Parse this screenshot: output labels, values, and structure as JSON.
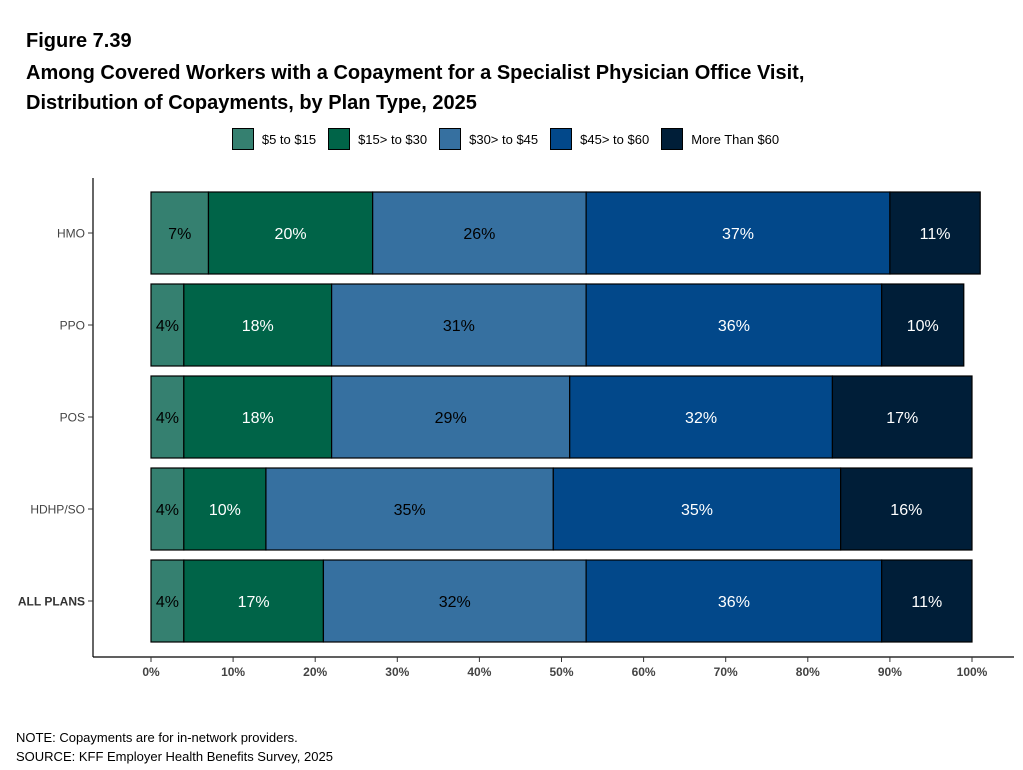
{
  "figure_label": "Figure 7.39",
  "title_line1": "Among Covered Workers with a Copayment for a Specialist Physician Office Visit,",
  "title_line2": "Distribution of Copayments, by Plan Type, 2025",
  "note": "NOTE: Copayments are for in-network providers.",
  "source": "SOURCE: KFF Employer Health Benefits Survey, 2025",
  "chart_data": {
    "type": "bar",
    "orientation": "horizontal",
    "stacked": true,
    "title": "Among Covered Workers with a Copayment for a Specialist Physician Office Visit, Distribution of Copayments, by Plan Type, 2025",
    "xlabel": "",
    "ylabel": "",
    "xlim": [
      0,
      100
    ],
    "x_ticks": [
      "0%",
      "10%",
      "20%",
      "30%",
      "40%",
      "50%",
      "60%",
      "70%",
      "80%",
      "90%",
      "100%"
    ],
    "categories": [
      "HMO",
      "PPO",
      "POS",
      "HDHP/SO",
      "ALL PLANS"
    ],
    "category_bold": [
      false,
      false,
      false,
      false,
      true
    ],
    "legend_position": "top",
    "grid": false,
    "series": [
      {
        "name": "$5 to $15",
        "color": "#358070",
        "label_color": "#000000",
        "values": [
          7,
          4,
          4,
          4,
          4
        ],
        "labels": [
          "7%",
          "4%",
          "4%",
          "4%",
          "4%"
        ]
      },
      {
        "name": "$15> to $30",
        "color": "#006448",
        "label_color": "#ffffff",
        "values": [
          20,
          18,
          18,
          10,
          17
        ],
        "labels": [
          "20%",
          "18%",
          "18%",
          "10%",
          "17%"
        ]
      },
      {
        "name": "$30> to  $45",
        "color": "#3670a0",
        "label_color": "#000000",
        "values": [
          26,
          31,
          29,
          35,
          32
        ],
        "labels": [
          "26%",
          "31%",
          "29%",
          "35%",
          "32%"
        ]
      },
      {
        "name": "$45> to $60",
        "color": "#02488a",
        "label_color": "#ffffff",
        "values": [
          37,
          36,
          32,
          35,
          36
        ],
        "labels": [
          "37%",
          "36%",
          "32%",
          "35%",
          "36%"
        ]
      },
      {
        "name": "More Than $60",
        "color": "#001e38",
        "label_color": "#ffffff",
        "values": [
          11,
          10,
          17,
          16,
          11
        ],
        "labels": [
          "11%",
          "10%",
          "17%",
          "16%",
          "11%"
        ]
      }
    ]
  }
}
